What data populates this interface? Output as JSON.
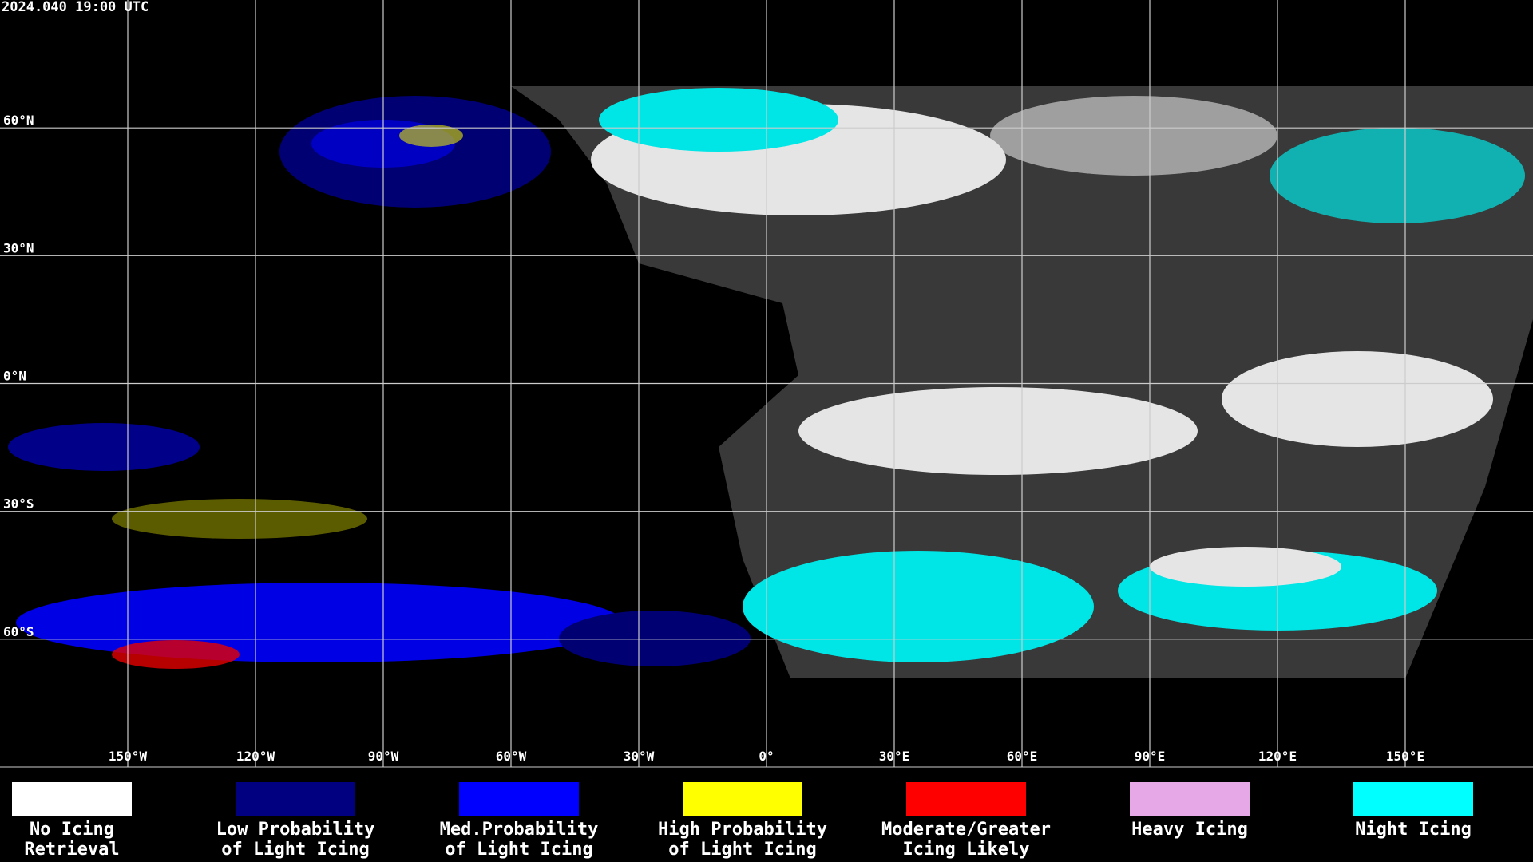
{
  "header": {
    "timestamp": "2024.040 19:00 UTC"
  },
  "grid": {
    "latitudes": [
      {
        "value": 60,
        "label": "60°N"
      },
      {
        "value": 30,
        "label": "30°N"
      },
      {
        "value": 0,
        "label": "0°N"
      },
      {
        "value": -30,
        "label": "30°S"
      },
      {
        "value": -60,
        "label": "60°S"
      }
    ],
    "longitudes": [
      {
        "value": -150,
        "label": "150°W"
      },
      {
        "value": -120,
        "label": "120°W"
      },
      {
        "value": -90,
        "label": "90°W"
      },
      {
        "value": -60,
        "label": "60°W"
      },
      {
        "value": -30,
        "label": "30°W"
      },
      {
        "value": 0,
        "label": "0°"
      },
      {
        "value": 30,
        "label": "30°E"
      },
      {
        "value": 60,
        "label": "60°E"
      },
      {
        "value": 90,
        "label": "90°E"
      },
      {
        "value": 120,
        "label": "120°E"
      },
      {
        "value": 150,
        "label": "150°E"
      }
    ]
  },
  "legend": [
    {
      "lines": [
        "No Icing",
        "Retrieval"
      ],
      "color": "#ffffff"
    },
    {
      "lines": [
        "Low Probability",
        "of Light Icing"
      ],
      "color": "#000080"
    },
    {
      "lines": [
        "Med.Probability",
        "of Light Icing"
      ],
      "color": "#0000ff"
    },
    {
      "lines": [
        "High Probability",
        "of Light Icing"
      ],
      "color": "#ffff00"
    },
    {
      "lines": [
        "Moderate/Greater",
        "Icing Likely"
      ],
      "color": "#ff0000"
    },
    {
      "lines": [
        "Heavy Icing"
      ],
      "color": "#e6a8e6"
    },
    {
      "lines": [
        "Night Icing"
      ],
      "color": "#00ffff"
    }
  ]
}
